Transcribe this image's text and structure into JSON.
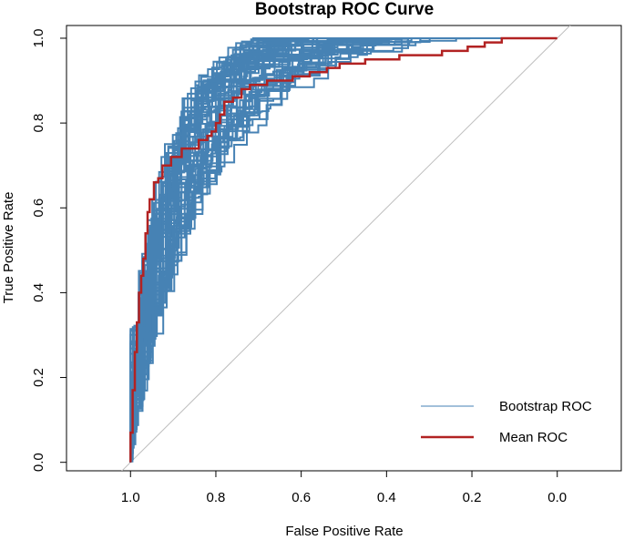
{
  "chart_data": {
    "type": "line",
    "title": "Bootstrap ROC Curve",
    "xlabel": "False Positive Rate",
    "ylabel": "True Positive Rate",
    "x_reversed": true,
    "xlim": [
      1.15,
      -0.15
    ],
    "ylim": [
      -0.02,
      1.03
    ],
    "x_ticks": [
      1.0,
      0.8,
      0.6,
      0.4,
      0.2,
      0.0
    ],
    "x_tick_labels": [
      "1.0",
      "0.8",
      "0.6",
      "0.4",
      "0.2",
      "0.0"
    ],
    "y_ticks": [
      0.0,
      0.2,
      0.4,
      0.6,
      0.8,
      1.0
    ],
    "y_tick_labels": [
      "0.0",
      "0.2",
      "0.4",
      "0.6",
      "0.8",
      "1.0"
    ],
    "grid": false,
    "legend_position": "bottom-right",
    "colors": {
      "bootstrap": "#4682B4",
      "mean": "#B22222",
      "diagonal": "#BEBEBE"
    },
    "series": [
      {
        "name": "Bootstrap ROC",
        "color": "#4682B4",
        "line_width": 1,
        "resamples": 60
      },
      {
        "name": "Mean ROC",
        "color": "#B22222",
        "line_width": 2,
        "x": [
          1.0,
          1.0,
          0.995,
          0.995,
          0.99,
          0.99,
          0.985,
          0.985,
          0.98,
          0.98,
          0.975,
          0.975,
          0.97,
          0.97,
          0.965,
          0.965,
          0.96,
          0.96,
          0.955,
          0.955,
          0.945,
          0.945,
          0.935,
          0.935,
          0.925,
          0.925,
          0.905,
          0.905,
          0.88,
          0.88,
          0.84,
          0.84,
          0.82,
          0.82,
          0.81,
          0.81,
          0.8,
          0.8,
          0.79,
          0.79,
          0.78,
          0.78,
          0.76,
          0.76,
          0.74,
          0.74,
          0.72,
          0.72,
          0.7,
          0.7,
          0.68,
          0.68,
          0.62,
          0.62,
          0.58,
          0.58,
          0.54,
          0.54,
          0.51,
          0.51,
          0.45,
          0.45,
          0.37,
          0.37,
          0.27,
          0.27,
          0.21,
          0.21,
          0.17,
          0.17,
          0.13,
          0.13,
          0.0
        ],
        "y": [
          0.0,
          0.07,
          0.07,
          0.17,
          0.17,
          0.26,
          0.26,
          0.33,
          0.33,
          0.4,
          0.4,
          0.44,
          0.44,
          0.48,
          0.48,
          0.54,
          0.54,
          0.59,
          0.59,
          0.62,
          0.62,
          0.66,
          0.66,
          0.67,
          0.67,
          0.7,
          0.7,
          0.72,
          0.72,
          0.74,
          0.74,
          0.76,
          0.76,
          0.77,
          0.77,
          0.78,
          0.78,
          0.8,
          0.8,
          0.82,
          0.82,
          0.85,
          0.85,
          0.86,
          0.86,
          0.88,
          0.88,
          0.89,
          0.89,
          0.89,
          0.89,
          0.9,
          0.9,
          0.91,
          0.91,
          0.92,
          0.92,
          0.93,
          0.93,
          0.94,
          0.94,
          0.95,
          0.95,
          0.96,
          0.96,
          0.97,
          0.97,
          0.98,
          0.98,
          0.99,
          0.99,
          1.0,
          1.0
        ]
      }
    ],
    "reference_line": {
      "from": [
        1.0,
        0.0
      ],
      "to": [
        0.0,
        1.0
      ]
    }
  }
}
